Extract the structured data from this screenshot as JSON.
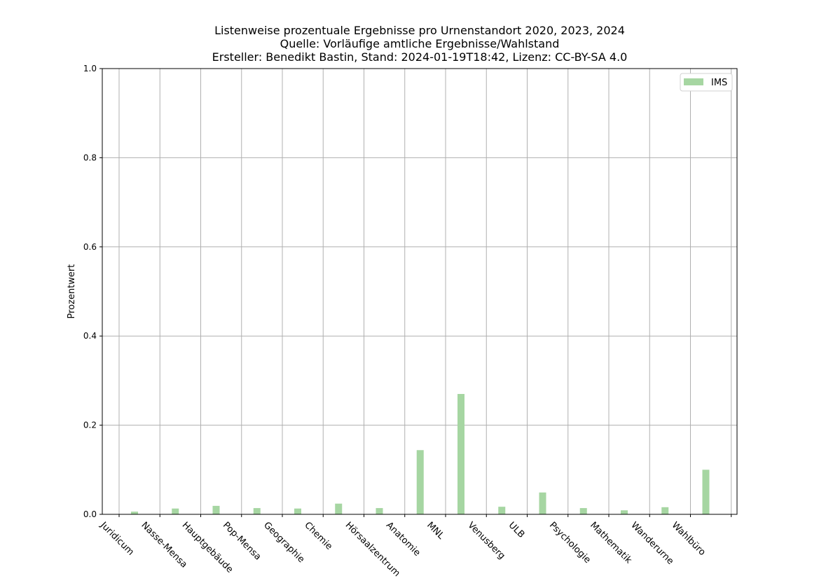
{
  "chart_data": {
    "type": "bar",
    "title_lines": [
      "Listenweise prozentuale Ergebnisse pro Urnenstandort 2020, 2023, 2024",
      "Quelle: Vorläufige amtliche Ergebnisse/Wahlstand",
      "Ersteller: Benedikt Bastin, Stand: 2024-01-19T18:42, Lizenz: CC-BY-SA 4.0"
    ],
    "xlabel": "",
    "ylabel": "Prozentwert",
    "ylim": [
      0,
      1
    ],
    "yticks": [
      "0.0",
      "0.2",
      "0.4",
      "0.6",
      "0.8",
      "1.0"
    ],
    "grid": true,
    "legend_position": "top-right",
    "categories": [
      "Juridicum",
      "Nasse-Mensa",
      "Hauptgebäude",
      "Pop-Mensa",
      "Geographie",
      "Chemie",
      "Hörsaalzentrum",
      "Anatomie",
      "MNL",
      "Venusberg",
      "ULB",
      "Psychologie",
      "Mathematik",
      "Wanderurne",
      "Wahlbüro"
    ],
    "series": [
      {
        "name": "IMS",
        "color": "#a6d6a2",
        "values": [
          0.006,
          0.013,
          0.019,
          0.014,
          0.013,
          0.024,
          0.014,
          0.144,
          0.27,
          0.017,
          0.049,
          0.014,
          0.009,
          0.016,
          0.1
        ]
      }
    ]
  }
}
